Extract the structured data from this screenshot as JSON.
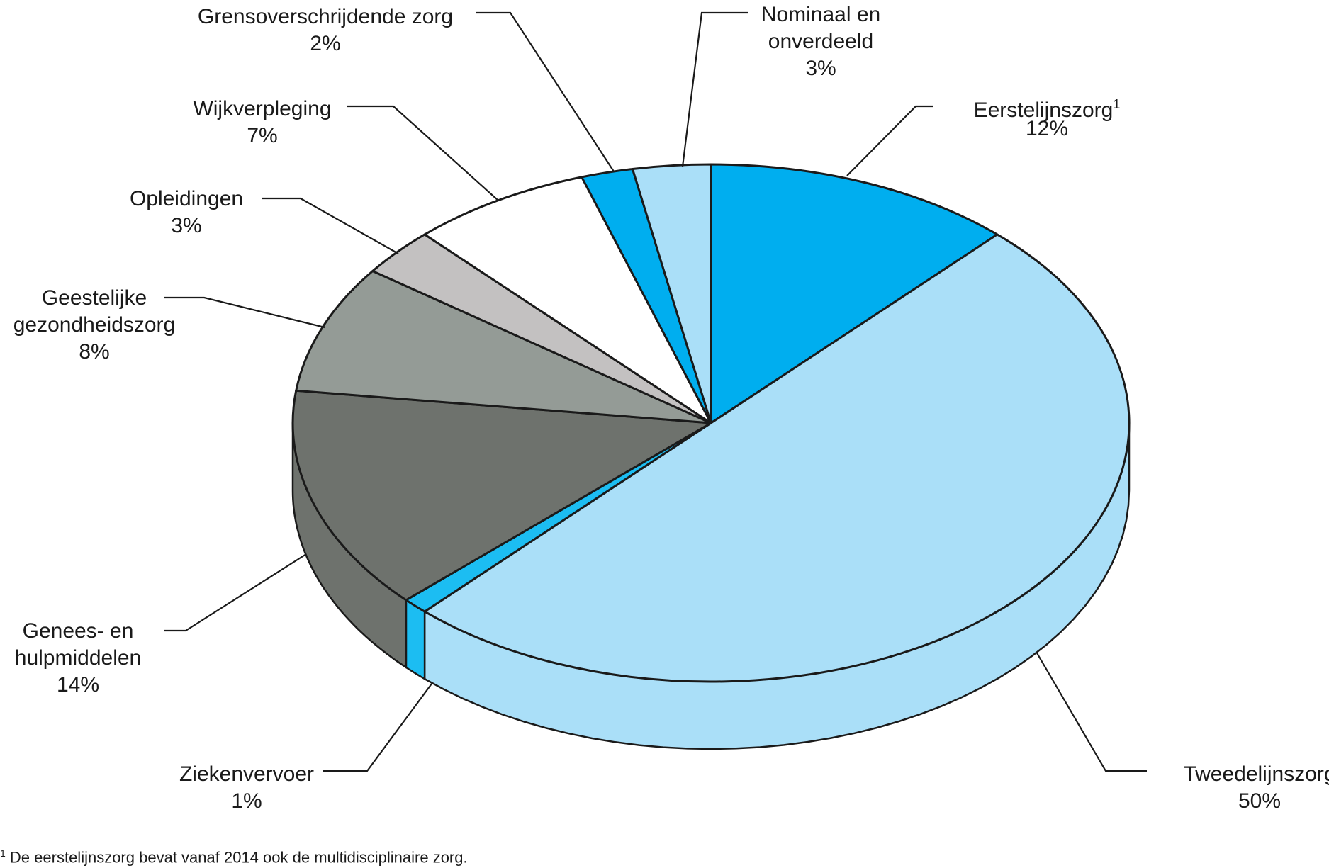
{
  "chart_data": {
    "type": "pie",
    "style": "3d",
    "slices": [
      {
        "label": "Eerstelijnszorg",
        "label_lines": [
          "Eerstelijnszorg",
          "12%"
        ],
        "sup": "1",
        "value": 12,
        "value_label": "12%",
        "color": "#00aeef"
      },
      {
        "label": "Tweedelijnszorg",
        "label_lines": [
          "Tweedelijnszorg",
          "50%"
        ],
        "value": 50,
        "value_label": "50%",
        "color": "#aadff8"
      },
      {
        "label": "Ziekenvervoer",
        "label_lines": [
          "Ziekenvervoer",
          "1%"
        ],
        "value": 1,
        "value_label": "1%",
        "color": "#1cbdf2"
      },
      {
        "label": "Genees- en hulpmiddelen",
        "label_lines": [
          "Genees- en",
          "hulpmiddelen",
          "14%"
        ],
        "value": 14,
        "value_label": "14%",
        "color": "#6e726d"
      },
      {
        "label": "Geestelijke gezondheidszorg",
        "label_lines": [
          "Geestelijke",
          "gezondheidszorg",
          "8%"
        ],
        "value": 8,
        "value_label": "8%",
        "color": "#949b96"
      },
      {
        "label": "Opleidingen",
        "label_lines": [
          "Opleidingen",
          "3%"
        ],
        "value": 3,
        "value_label": "3%",
        "color": "#c3c1c1"
      },
      {
        "label": "Wijkverpleging",
        "label_lines": [
          "Wijkverpleging",
          "7%"
        ],
        "value": 7,
        "value_label": "7%",
        "color": "#ffffff"
      },
      {
        "label": "Grensoverschrijdende zorg",
        "label_lines": [
          "Grensoverschrijdende zorg",
          "2%"
        ],
        "value": 2,
        "value_label": "2%",
        "color": "#00aeef"
      },
      {
        "label": "Nominaal en onverdeeld",
        "label_lines": [
          "Nominaal en",
          "onverdeeld",
          "3%"
        ],
        "value": 3,
        "value_label": "3%",
        "color": "#aadff8"
      }
    ]
  },
  "footnote": {
    "marker": "1",
    "text": "De eerstelijnszorg bevat vanaf 2014 ook de multidisciplinaire zorg."
  }
}
